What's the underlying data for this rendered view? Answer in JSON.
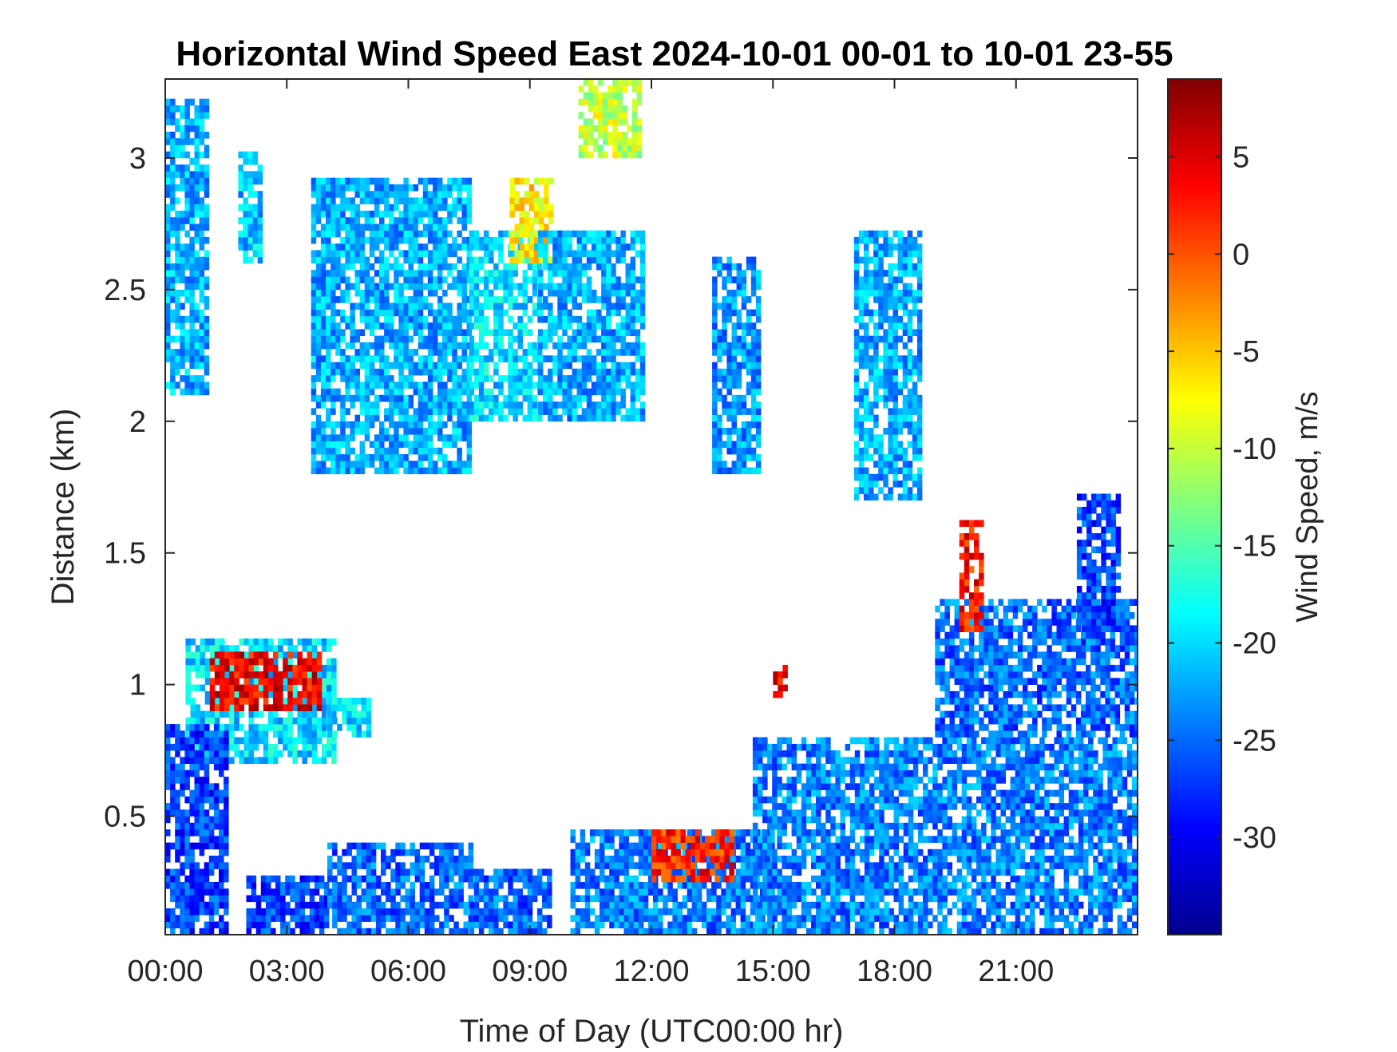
{
  "chart_data": {
    "type": "heatmap",
    "title": "Horizontal Wind Speed East 2024-10-01 00-01 to 10-01 23-55",
    "xlabel": "Time of Day (UTC00:00 hr)",
    "ylabel": "Distance (km)",
    "x_unit": "hours",
    "xlim": [
      0,
      24
    ],
    "ylim": [
      0.05,
      3.3
    ],
    "x_ticks": [
      0,
      3,
      6,
      9,
      12,
      15,
      18,
      21
    ],
    "x_tick_labels": [
      "00:00",
      "03:00",
      "06:00",
      "09:00",
      "12:00",
      "15:00",
      "18:00",
      "21:00"
    ],
    "y_ticks": [
      0.5,
      1,
      1.5,
      2,
      2.5,
      3
    ],
    "y_tick_labels": [
      "0.5",
      "1",
      "1.5",
      "2",
      "2.5",
      "3"
    ],
    "colorbar": {
      "label": "Wind Speed, m/s",
      "colormap": "jet",
      "clim": [
        -35,
        9
      ],
      "ticks": [
        -30,
        -25,
        -20,
        -15,
        -10,
        -5,
        0,
        5
      ],
      "tick_labels": [
        "-30",
        "-25",
        "-20",
        "-15",
        "-10",
        "-5",
        "0",
        "5"
      ]
    },
    "grid": false,
    "regions": [
      {
        "t": [
          0.0,
          1.0
        ],
        "z": [
          2.1,
          3.2
        ],
        "v": -22
      },
      {
        "t": [
          1.8,
          2.4
        ],
        "z": [
          2.6,
          3.0
        ],
        "v": -21
      },
      {
        "t": [
          3.6,
          7.5
        ],
        "z": [
          1.8,
          2.9
        ],
        "v": -22
      },
      {
        "t": [
          7.5,
          9.2
        ],
        "z": [
          2.0,
          2.7
        ],
        "v": -20
      },
      {
        "t": [
          8.5,
          9.5
        ],
        "z": [
          2.6,
          2.9
        ],
        "v": -7
      },
      {
        "t": [
          9.2,
          11.8
        ],
        "z": [
          2.0,
          2.7
        ],
        "v": -22
      },
      {
        "t": [
          10.2,
          11.7
        ],
        "z": [
          3.0,
          3.3
        ],
        "v": -10
      },
      {
        "t": [
          13.5,
          14.6
        ],
        "z": [
          1.8,
          2.6
        ],
        "v": -23
      },
      {
        "t": [
          17.0,
          18.6
        ],
        "z": [
          1.7,
          2.7
        ],
        "v": -22
      },
      {
        "t": [
          0.5,
          4.2
        ],
        "z": [
          0.7,
          1.15
        ],
        "v": -20
      },
      {
        "t": [
          1.1,
          3.8
        ],
        "z": [
          0.9,
          1.1
        ],
        "v": 4
      },
      {
        "t": [
          4.0,
          5.0
        ],
        "z": [
          0.8,
          0.95
        ],
        "v": -20
      },
      {
        "t": [
          0.0,
          1.5
        ],
        "z": [
          0.05,
          0.85
        ],
        "v": -27
      },
      {
        "t": [
          2.0,
          4.0
        ],
        "z": [
          0.05,
          0.25
        ],
        "v": -27
      },
      {
        "t": [
          4.0,
          7.5
        ],
        "z": [
          0.05,
          0.4
        ],
        "v": -25
      },
      {
        "t": [
          7.5,
          9.5
        ],
        "z": [
          0.05,
          0.3
        ],
        "v": -25
      },
      {
        "t": [
          10.0,
          15.0
        ],
        "z": [
          0.05,
          0.45
        ],
        "v": -24
      },
      {
        "t": [
          12.0,
          14.0
        ],
        "z": [
          0.25,
          0.45
        ],
        "v": 2
      },
      {
        "t": [
          14.5,
          24.0
        ],
        "z": [
          0.05,
          0.8
        ],
        "v": -24
      },
      {
        "t": [
          15.0,
          15.3
        ],
        "z": [
          0.95,
          1.05
        ],
        "v": 4
      },
      {
        "t": [
          19.0,
          24.0
        ],
        "z": [
          0.8,
          1.3
        ],
        "v": -25
      },
      {
        "t": [
          19.6,
          20.2
        ],
        "z": [
          1.2,
          1.6
        ],
        "v": 3
      },
      {
        "t": [
          22.5,
          23.5
        ],
        "z": [
          1.2,
          1.7
        ],
        "v": -27
      }
    ]
  }
}
